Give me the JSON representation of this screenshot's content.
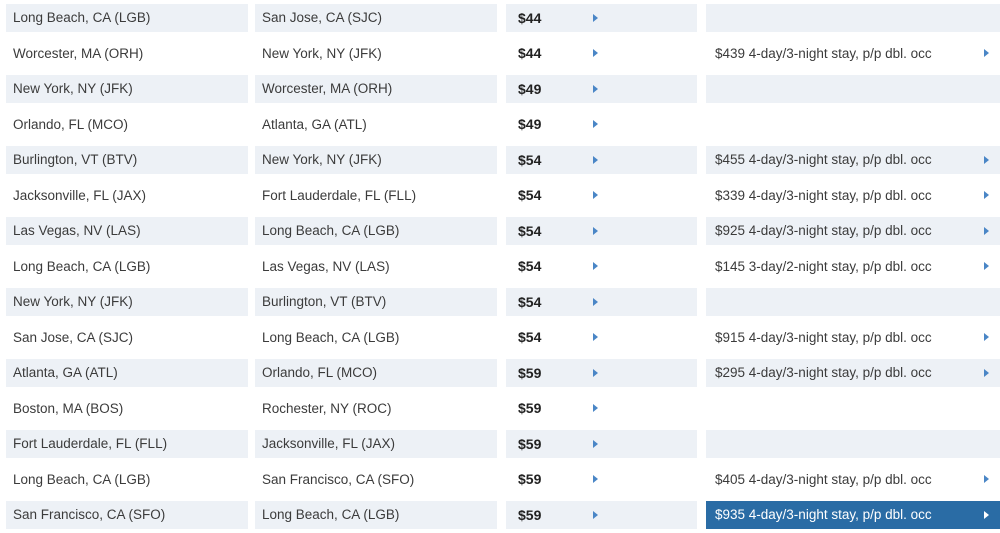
{
  "colors": {
    "row_shade": "#edf1f6",
    "arrow_blue": "#4a86c6",
    "highlight_blue": "#2a6ca5",
    "body_text": "#3b3b3b",
    "fare_text": "#222222",
    "highlight_text": "#ffffff"
  },
  "icons": {
    "row_arrow": "right-triangle"
  },
  "table": {
    "columns": [
      "origin_city",
      "destination_city",
      "fare",
      "package_deal"
    ],
    "rows": [
      {
        "origin": "Long Beach, CA (LGB)",
        "destination": "San Jose, CA (SJC)",
        "fare": "$44",
        "package": "",
        "highlighted": false
      },
      {
        "origin": "Worcester, MA (ORH)",
        "destination": "New York, NY (JFK)",
        "fare": "$44",
        "package": "$439 4-day/3-night stay, p/p dbl. occ",
        "highlighted": false
      },
      {
        "origin": "New York, NY (JFK)",
        "destination": "Worcester, MA (ORH)",
        "fare": "$49",
        "package": "",
        "highlighted": false
      },
      {
        "origin": "Orlando, FL (MCO)",
        "destination": "Atlanta, GA (ATL)",
        "fare": "$49",
        "package": "",
        "highlighted": false
      },
      {
        "origin": "Burlington, VT (BTV)",
        "destination": "New York, NY (JFK)",
        "fare": "$54",
        "package": "$455 4-day/3-night stay, p/p dbl. occ",
        "highlighted": false
      },
      {
        "origin": "Jacksonville, FL (JAX)",
        "destination": "Fort Lauderdale, FL (FLL)",
        "fare": "$54",
        "package": "$339 4-day/3-night stay, p/p dbl. occ",
        "highlighted": false
      },
      {
        "origin": "Las Vegas, NV (LAS)",
        "destination": "Long Beach, CA (LGB)",
        "fare": "$54",
        "package": "$925 4-day/3-night stay, p/p dbl. occ",
        "highlighted": false
      },
      {
        "origin": "Long Beach, CA (LGB)",
        "destination": "Las Vegas, NV (LAS)",
        "fare": "$54",
        "package": "$145 3-day/2-night stay, p/p dbl. occ",
        "highlighted": false
      },
      {
        "origin": "New York, NY (JFK)",
        "destination": "Burlington, VT (BTV)",
        "fare": "$54",
        "package": "",
        "highlighted": false
      },
      {
        "origin": "San Jose, CA (SJC)",
        "destination": "Long Beach, CA (LGB)",
        "fare": "$54",
        "package": "$915 4-day/3-night stay, p/p dbl. occ",
        "highlighted": false
      },
      {
        "origin": "Atlanta, GA (ATL)",
        "destination": "Orlando, FL (MCO)",
        "fare": "$59",
        "package": "$295 4-day/3-night stay, p/p dbl. occ",
        "highlighted": false
      },
      {
        "origin": "Boston, MA (BOS)",
        "destination": "Rochester, NY (ROC)",
        "fare": "$59",
        "package": "",
        "highlighted": false
      },
      {
        "origin": "Fort Lauderdale, FL (FLL)",
        "destination": "Jacksonville, FL (JAX)",
        "fare": "$59",
        "package": "",
        "highlighted": false
      },
      {
        "origin": "Long Beach, CA (LGB)",
        "destination": "San Francisco, CA (SFO)",
        "fare": "$59",
        "package": "$405 4-day/3-night stay, p/p dbl. occ",
        "highlighted": false
      },
      {
        "origin": "San Francisco, CA (SFO)",
        "destination": "Long Beach, CA (LGB)",
        "fare": "$59",
        "package": "$935 4-day/3-night stay, p/p dbl. occ",
        "highlighted": true
      }
    ]
  }
}
